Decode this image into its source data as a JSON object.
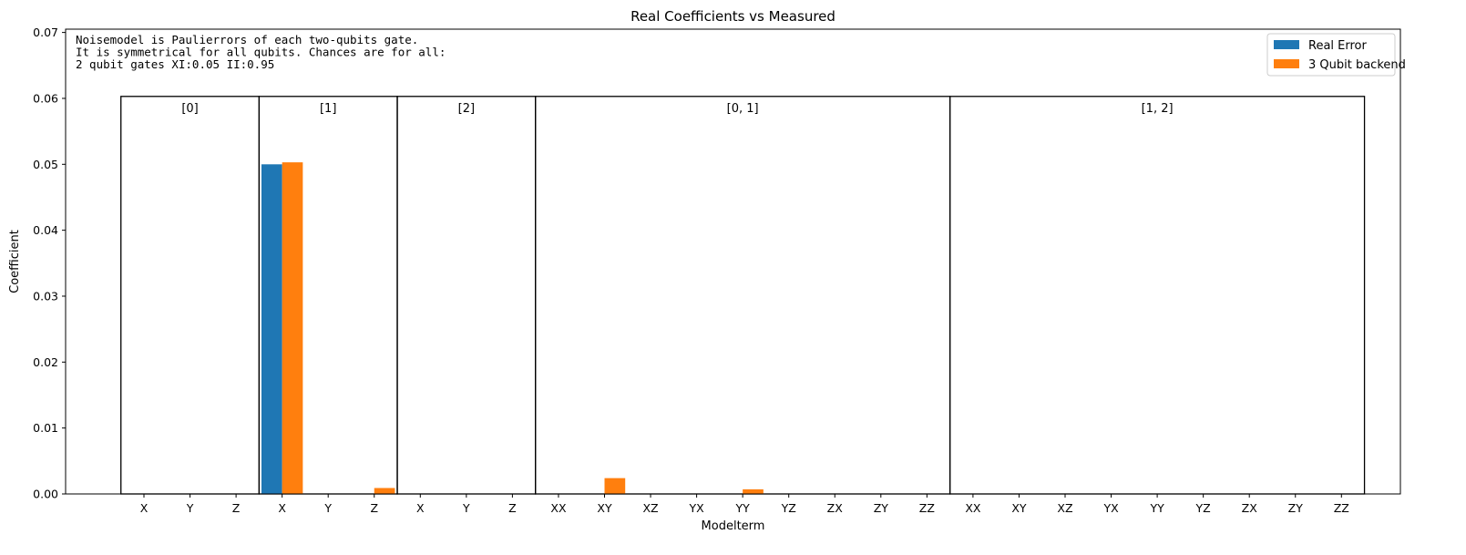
{
  "chart_data": {
    "type": "bar",
    "title": "Real Coefficients vs Measured",
    "xlabel": "Modelterm",
    "ylabel": "Coefficient",
    "ylim": [
      0,
      0.0705
    ],
    "yticks": [
      "0.00",
      "0.01",
      "0.02",
      "0.03",
      "0.04",
      "0.05",
      "0.06",
      "0.07"
    ],
    "ytick_values": [
      0,
      0.01,
      0.02,
      0.03,
      0.04,
      0.05,
      0.06,
      0.07
    ],
    "grid": false,
    "legend_position": "top-right",
    "categories": [
      "X",
      "Y",
      "Z",
      "X",
      "Y",
      "Z",
      "X",
      "Y",
      "Z",
      "XX",
      "XY",
      "XZ",
      "YX",
      "YY",
      "YZ",
      "ZX",
      "ZY",
      "ZZ",
      "XX",
      "XY",
      "XZ",
      "YX",
      "YY",
      "YZ",
      "ZX",
      "ZY",
      "ZZ"
    ],
    "series": [
      {
        "name": "Real Error",
        "color": "#1f77b4",
        "values": [
          0,
          0,
          0,
          0.05,
          0,
          0,
          0,
          0,
          0,
          0,
          0,
          0,
          0,
          0,
          0,
          0,
          0,
          0,
          0,
          0,
          0,
          0,
          0,
          0,
          0,
          0,
          0
        ]
      },
      {
        "name": "3 Qubit backend",
        "color": "#ff7f0e",
        "values": [
          0,
          0,
          0,
          0.0503,
          0,
          0.0009,
          0,
          0,
          0,
          0,
          0.0024,
          0,
          0,
          0.0007,
          0,
          0,
          0,
          0,
          0,
          0,
          0,
          0,
          0,
          0,
          0,
          0,
          0
        ]
      }
    ],
    "groups": [
      {
        "label": "[0]",
        "start": 0,
        "end": 2
      },
      {
        "label": "[1]",
        "start": 3,
        "end": 5
      },
      {
        "label": "[2]",
        "start": 6,
        "end": 8
      },
      {
        "label": "[0, 1]",
        "start": 9,
        "end": 17
      },
      {
        "label": "[1, 2]",
        "start": 18,
        "end": 26
      }
    ],
    "group_box_top": 0.0603,
    "annotation": [
      "Noisemodel is Paulierrors of each two-qubits gate.",
      "It is symmetrical for all qubits. Chances are for all:",
      "2 qubit gates XI:0.05   II:0.95"
    ]
  }
}
